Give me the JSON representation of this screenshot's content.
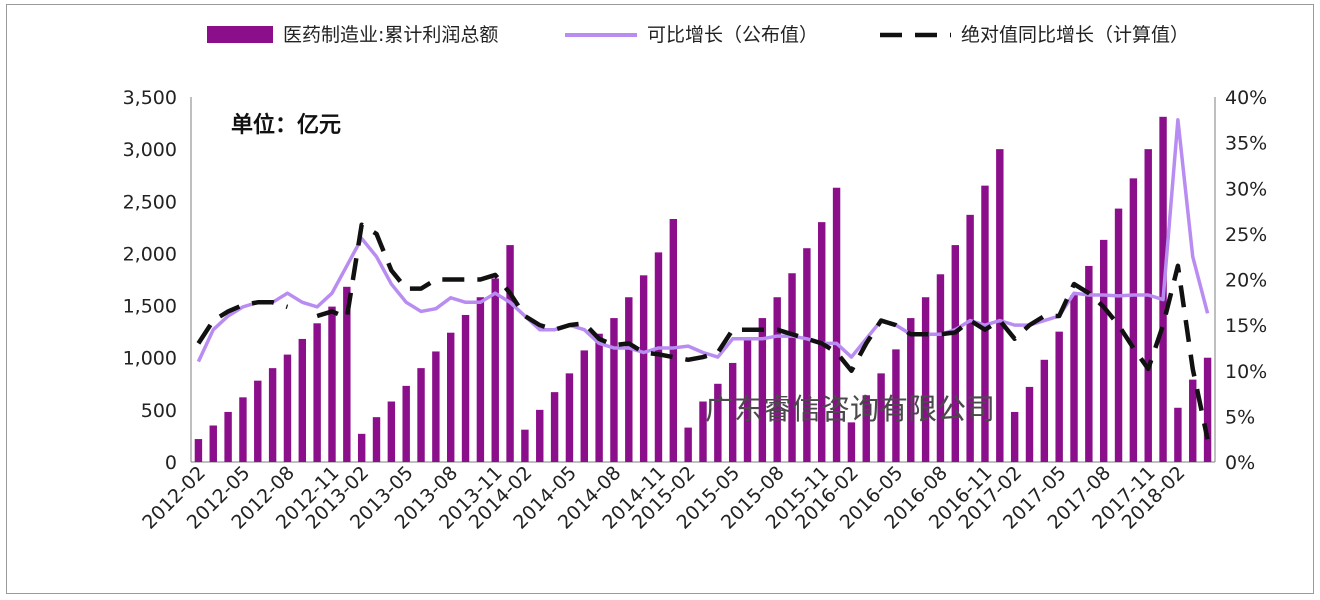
{
  "chart_data": {
    "type": "bar",
    "unit_note": "单位：亿元",
    "watermark": "广东睿信咨询有限公司",
    "colors": {
      "bars": "#8b0f8b",
      "published": "#b98cf2",
      "computed": "#111111"
    },
    "legend": {
      "bars": "医药制造业:累计利润总额",
      "published": "可比增长（公布值）",
      "computed": "绝对值同比增长（计算值）"
    },
    "y_left": {
      "min": 0,
      "max": 3500,
      "ticks": [
        "0",
        "500",
        "1,000",
        "1,500",
        "2,000",
        "2,500",
        "3,000",
        "3,500"
      ]
    },
    "y_right": {
      "min": 0,
      "max": 40,
      "ticks": [
        "0%",
        "5%",
        "10%",
        "15%",
        "20%",
        "25%",
        "30%",
        "35%",
        "40%"
      ]
    },
    "x_tick_labels": [
      "2012-02",
      "2012-05",
      "2012-08",
      "2012-11",
      "2013-02",
      "2013-05",
      "2013-08",
      "2013-11",
      "2014-02",
      "2014-05",
      "2014-08",
      "2014-11",
      "2015-02",
      "2015-05",
      "2015-08",
      "2015-11",
      "2016-02",
      "2016-05",
      "2016-08",
      "2016-11",
      "2017-02",
      "2017-05",
      "2017-08",
      "2017-11",
      "2018-02"
    ],
    "categories": [
      "2012-02",
      "2012-03",
      "2012-04",
      "2012-05",
      "2012-06",
      "2012-07",
      "2012-08",
      "2012-09",
      "2012-10",
      "2012-11",
      "2012-12",
      "2013-02",
      "2013-03",
      "2013-04",
      "2013-05",
      "2013-06",
      "2013-07",
      "2013-08",
      "2013-09",
      "2013-10",
      "2013-11",
      "2013-12",
      "2014-02",
      "2014-03",
      "2014-04",
      "2014-05",
      "2014-06",
      "2014-07",
      "2014-08",
      "2014-09",
      "2014-10",
      "2014-11",
      "2014-12",
      "2015-02",
      "2015-03",
      "2015-04",
      "2015-05",
      "2015-06",
      "2015-07",
      "2015-08",
      "2015-09",
      "2015-10",
      "2015-11",
      "2015-12",
      "2016-02",
      "2016-03",
      "2016-04",
      "2016-05",
      "2016-06",
      "2016-07",
      "2016-08",
      "2016-09",
      "2016-10",
      "2016-11",
      "2016-12",
      "2017-02",
      "2017-03",
      "2017-04",
      "2017-05",
      "2017-06",
      "2017-07",
      "2017-08",
      "2017-09",
      "2017-10",
      "2017-11",
      "2017-12",
      "2018-02",
      "2018-03",
      "2018-04"
    ],
    "bars": [
      220,
      350,
      480,
      620,
      780,
      900,
      1030,
      1180,
      1330,
      1490,
      1680,
      270,
      430,
      580,
      730,
      900,
      1060,
      1240,
      1410,
      1580,
      1760,
      2080,
      310,
      500,
      670,
      850,
      1070,
      1230,
      1380,
      1580,
      1790,
      2010,
      2330,
      330,
      580,
      750,
      950,
      1170,
      1380,
      1580,
      1810,
      2050,
      2300,
      2630,
      380,
      640,
      850,
      1080,
      1380,
      1580,
      1800,
      2080,
      2370,
      2650,
      3000,
      480,
      720,
      980,
      1250,
      1600,
      1880,
      2130,
      2430,
      2720,
      3000,
      3310,
      520,
      790,
      1000
    ],
    "series": [
      {
        "name": "可比增长（公布值）",
        "values": [
          11,
          14.5,
          16,
          17,
          17.5,
          17.5,
          18.5,
          17.5,
          17,
          18.5,
          21.5,
          24.5,
          22.5,
          19.5,
          17.5,
          16.5,
          16.8,
          18,
          17.5,
          17.5,
          18.5,
          17.5,
          16,
          14.5,
          14.5,
          15,
          14.5,
          13,
          12.5,
          12.5,
          12,
          12.5,
          12.5,
          12.7,
          12,
          11.5,
          13.5,
          13.5,
          13.5,
          13.8,
          13.8,
          13.5,
          13,
          13,
          11.5,
          13.5,
          15.5,
          15,
          14,
          14,
          14,
          14.5,
          15.5,
          15,
          15.5,
          15,
          15,
          15.5,
          16,
          18.5,
          18.3,
          18.3,
          18.2,
          18.3,
          18.3,
          17.8,
          37.5,
          22.5,
          16.3
        ]
      },
      {
        "name": "绝对值同比增长（计算值）",
        "values": [
          13,
          15.5,
          16.5,
          17.2,
          17.5,
          17.5,
          17,
          null,
          16,
          16.5,
          15.8,
          26,
          25,
          21,
          19,
          19,
          20,
          20,
          20,
          20,
          20.5,
          18.5,
          16,
          15,
          14.5,
          15,
          15.2,
          13.5,
          12.8,
          13,
          12,
          11.8,
          11.5,
          11.2,
          11.5,
          12,
          14.5,
          14.5,
          14.5,
          14.5,
          14,
          13.5,
          13,
          12,
          10,
          13,
          15.5,
          15,
          14,
          14,
          14,
          14.2,
          15.5,
          14.5,
          15.5,
          13.5,
          15,
          16,
          16,
          19.5,
          18.5,
          17,
          15,
          12.5,
          10.2,
          15,
          21.5,
          10.2,
          2.5
        ]
      }
    ]
  }
}
